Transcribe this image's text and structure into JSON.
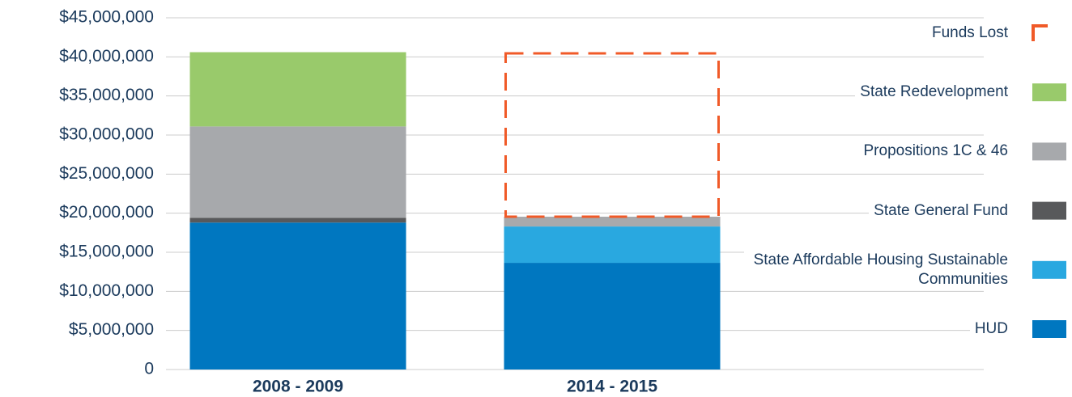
{
  "chart_data": {
    "type": "bar",
    "stacked": true,
    "categories": [
      "2008 - 2009",
      "2014 - 2015"
    ],
    "series": [
      {
        "name": "HUD",
        "color": "#0077c0",
        "values": [
          18800000,
          13650000
        ]
      },
      {
        "name": "State Affordable Housing Sustainable Communities",
        "color": "#29a8e0",
        "values": [
          null,
          4650000
        ]
      },
      {
        "name": "State General Fund",
        "color": "#58595b",
        "values": [
          600000,
          null
        ]
      },
      {
        "name": "Propositions 1C & 46",
        "color": "#a7a9ac",
        "values": [
          11700000,
          1250000
        ]
      },
      {
        "name": "State Redevelopment",
        "color": "#99ca6b",
        "values": [
          9500000,
          null
        ]
      },
      {
        "name": "Funds Lost",
        "color": "#f05a28",
        "dashed": true,
        "values": [
          null,
          20900000
        ]
      }
    ],
    "ylim": [
      0,
      45000000
    ],
    "yticks": [
      0,
      {
        "value": 5000000,
        "label": "$5,000,000"
      },
      {
        "value": 10000000,
        "label": "$10,000,000"
      },
      {
        "value": 15000000,
        "label": "$15,000,000"
      },
      {
        "value": 20000000,
        "label": "$20,000,000"
      },
      {
        "value": 25000000,
        "label": "$25,000,000"
      },
      {
        "value": 30000000,
        "label": "$30,000,000"
      },
      {
        "value": 35000000,
        "label": "$35,000,000"
      },
      {
        "value": 40000000,
        "label": "$40,000,000"
      },
      {
        "value": 45000000,
        "label": "$45,000,000"
      }
    ],
    "grid": true,
    "legend": "right"
  }
}
